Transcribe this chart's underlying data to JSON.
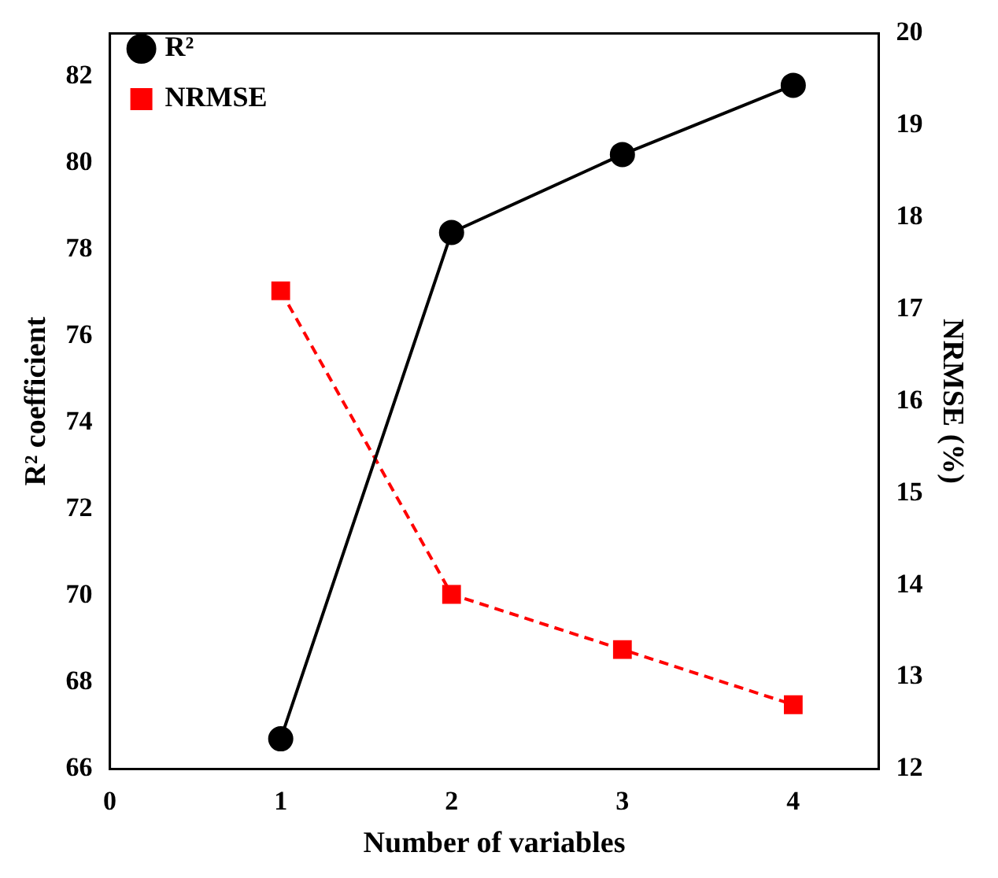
{
  "chart_data": {
    "type": "line",
    "xlabel": "Number of variables",
    "ylabel": "R² coefficient",
    "y2label": "NRMSE (%)",
    "x": [
      1,
      2,
      3,
      4
    ],
    "series": [
      {
        "name": "R²",
        "color": "#000000",
        "values": [
          66.7,
          78.4,
          80.2,
          81.8
        ],
        "marker": "circle",
        "line_style": "solid"
      },
      {
        "name": "NRMSE",
        "color": "#ff0000",
        "values": [
          17.2,
          13.9,
          13.3,
          12.7
        ],
        "axis": "y2",
        "marker": "square",
        "line_style": "dashed"
      }
    ],
    "xlim": [
      0,
      4.5
    ],
    "xticks": [
      0,
      1,
      2,
      3,
      4
    ],
    "ylim": [
      66,
      83
    ],
    "yticks": [
      66,
      68,
      70,
      72,
      74,
      76,
      78,
      80,
      82
    ],
    "y2lim": [
      12,
      20
    ],
    "y2ticks": [
      12,
      13,
      14,
      15,
      16,
      17,
      18,
      19,
      20
    ],
    "legend": "top left",
    "grid": false
  }
}
